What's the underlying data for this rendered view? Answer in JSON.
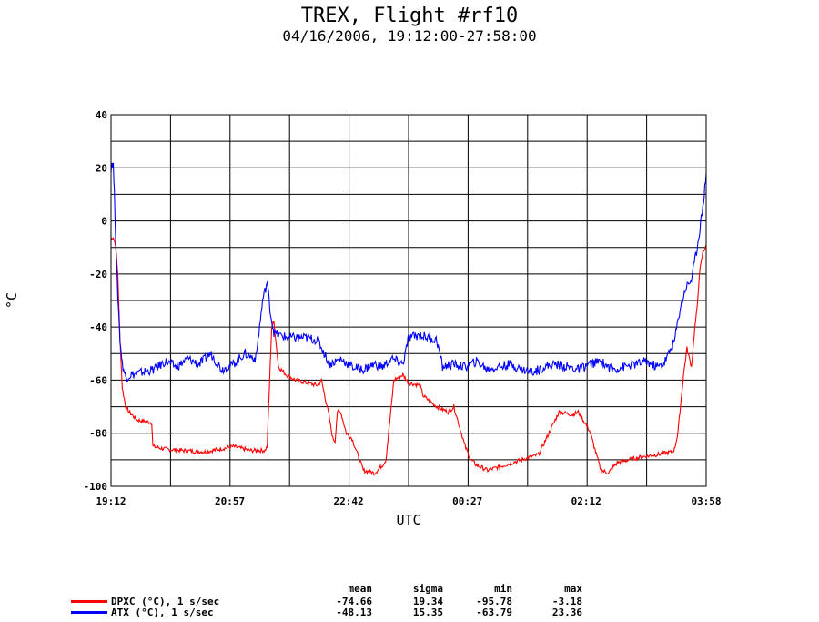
{
  "chart_data": {
    "type": "line",
    "title": "TREX, Flight #rf10",
    "subtitle": "04/16/2006, 19:12:00-27:58:00",
    "xlabel": "UTC",
    "ylabel": "°C",
    "ylim": [
      -100,
      40
    ],
    "xlim": [
      "19:12",
      "03:58"
    ],
    "x_ticks": [
      "19:12",
      "20:57",
      "22:42",
      "00:27",
      "02:12",
      "03:58"
    ],
    "y_ticks": [
      40,
      20,
      0,
      -20,
      -40,
      -60,
      -80,
      -100
    ],
    "grid": true,
    "series": [
      {
        "name": "DPXC (°C), 1 s/sec",
        "color": "#ff0000",
        "x": [
          "19:12",
          "19:14",
          "19:16",
          "19:18",
          "19:20",
          "19:22",
          "19:25",
          "19:28",
          "19:35",
          "19:48",
          "19:49",
          "20:00",
          "20:15",
          "20:35",
          "20:48",
          "21:00",
          "21:15",
          "21:28",
          "21:30",
          "21:34",
          "21:36",
          "21:40",
          "21:47",
          "21:55",
          "22:05",
          "22:15",
          "22:18",
          "22:24",
          "22:28",
          "22:30",
          "22:32",
          "22:35",
          "22:40",
          "22:45",
          "22:55",
          "23:05",
          "23:12",
          "23:15",
          "23:22",
          "23:30",
          "23:35",
          "23:45",
          "23:48",
          "24:00",
          "24:10",
          "24:15",
          "24:25",
          "24:30",
          "24:35",
          "24:45",
          "25:00",
          "25:15",
          "25:30",
          "25:48",
          "26:00",
          "26:05",
          "26:15",
          "26:25",
          "26:32",
          "26:35",
          "26:40",
          "26:50",
          "27:00",
          "27:15",
          "27:28",
          "27:30",
          "27:33",
          "27:38",
          "27:41",
          "27:45",
          "27:48",
          "27:50",
          "27:52",
          "27:55",
          "27:58"
        ],
        "values": [
          -7,
          -6,
          -9,
          -20,
          -45,
          -63,
          -70,
          -72,
          -75,
          -76,
          -85,
          -86,
          -86.5,
          -87,
          -86,
          -85,
          -86.5,
          -86.5,
          -85,
          -40,
          -38,
          -55,
          -58,
          -60,
          -61,
          -62,
          -60,
          -72,
          -82,
          -83,
          -72,
          -72,
          -80,
          -82,
          -94,
          -95,
          -92,
          -90,
          -60,
          -58,
          -61,
          -62,
          -66,
          -70,
          -72,
          -70,
          -85,
          -90,
          -92,
          -94,
          -92,
          -90,
          -88,
          -72,
          -73,
          -72,
          -79,
          -94,
          -95,
          -93,
          -91,
          -90,
          -89,
          -88,
          -87,
          -86,
          -80,
          -58,
          -48,
          -55,
          -40,
          -33,
          -20,
          -12,
          -9
        ]
      },
      {
        "name": "ATX (°C), 1 s/sec",
        "color": "#0000ff",
        "x": [
          "19:12",
          "19:13",
          "19:14",
          "19:15",
          "19:16",
          "19:17",
          "19:18",
          "19:20",
          "19:22",
          "19:25",
          "19:30",
          "19:40",
          "19:50",
          "20:00",
          "20:10",
          "20:20",
          "20:30",
          "20:40",
          "20:50",
          "21:00",
          "21:10",
          "21:20",
          "21:26",
          "21:30",
          "21:33",
          "21:36",
          "21:40",
          "21:48",
          "21:55",
          "22:05",
          "22:15",
          "22:25",
          "22:35",
          "22:45",
          "22:55",
          "23:05",
          "23:12",
          "23:20",
          "23:30",
          "23:35",
          "23:45",
          "23:52",
          "24:00",
          "24:05",
          "24:15",
          "24:25",
          "24:35",
          "24:45",
          "24:55",
          "25:05",
          "25:15",
          "25:25",
          "25:35",
          "25:45",
          "25:55",
          "26:05",
          "26:15",
          "26:25",
          "26:35",
          "26:45",
          "26:55",
          "27:05",
          "27:15",
          "27:20",
          "27:25",
          "27:30",
          "27:35",
          "27:40",
          "27:45",
          "27:50",
          "27:55",
          "27:58"
        ],
        "values": [
          20,
          22,
          21,
          10,
          -5,
          -18,
          -28,
          -45,
          -54,
          -59,
          -58,
          -57,
          -56,
          -53,
          -55,
          -52,
          -54,
          -50,
          -56,
          -54,
          -50,
          -52,
          -30,
          -23,
          -35,
          -42,
          -43,
          -44,
          -44,
          -44,
          -45,
          -54,
          -52,
          -55,
          -56,
          -54,
          -55,
          -52,
          -54,
          -44,
          -43,
          -44,
          -45,
          -55,
          -54,
          -55,
          -53,
          -56,
          -55,
          -54,
          -56,
          -57,
          -55,
          -54,
          -55,
          -56,
          -54,
          -53,
          -56,
          -55,
          -54,
          -53,
          -55,
          -54,
          -50,
          -45,
          -33,
          -25,
          -22,
          -10,
          5,
          18
        ]
      }
    ],
    "stats_header": [
      "mean",
      "sigma",
      "min",
      "max"
    ],
    "stats": [
      {
        "mean": "-74.66",
        "sigma": "19.34",
        "min": "-95.78",
        "max": "-3.18"
      },
      {
        "mean": "-48.13",
        "sigma": "15.35",
        "min": "-63.79",
        "max": "23.36"
      }
    ]
  }
}
